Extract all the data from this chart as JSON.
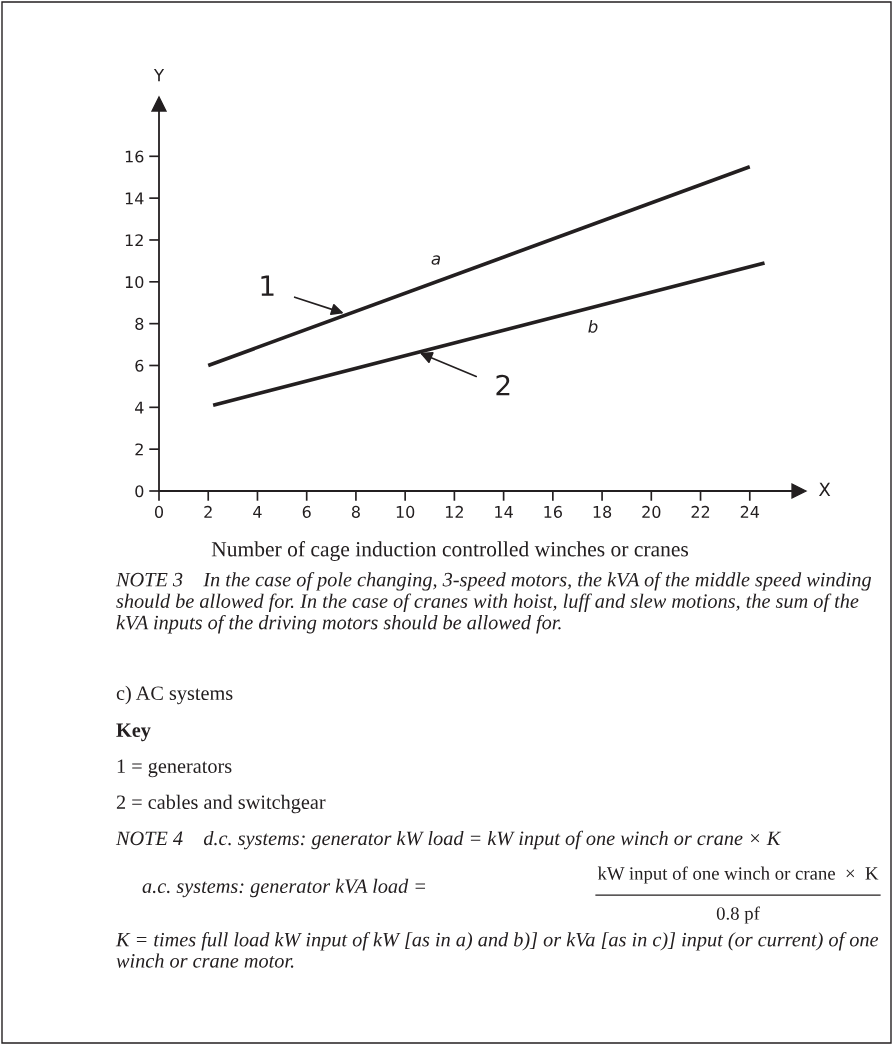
{
  "chart_data": {
    "type": "line",
    "xlabel": "Number of cage induction controlled winches or cranes",
    "ylabel": "Y",
    "xlim": [
      0,
      26
    ],
    "ylim": [
      0,
      18.5
    ],
    "xticks": [
      0,
      2,
      4,
      6,
      8,
      10,
      12,
      14,
      16,
      18,
      20,
      22,
      24
    ],
    "yticks": [
      0,
      2,
      4,
      6,
      8,
      10,
      12,
      14,
      16
    ],
    "grid": false,
    "marker": "none",
    "line_style": "solid",
    "series": [
      {
        "color": "#231f20",
        "x": [
          2,
          24
        ],
        "values": [
          6.0,
          15.5
        ]
      },
      {
        "color": "#231f20",
        "x": [
          2.2,
          24.6
        ],
        "values": [
          4.1,
          10.9
        ]
      }
    ],
    "annotations": [
      "a",
      "b",
      {
        "text": "1",
        "x": 7.5,
        "y": 8.5
      },
      {
        "text": "2",
        "x": 10.6,
        "y": 6.6
      },
      {
        "text": "X",
        "x": 26,
        "y": 0
      },
      "NOTE 3    In the case of pole changing, 3-speed motors, the kVA of the middle speed winding should be allowed for. In the case of cranes with hoist, luff and slew motions, the sum of the kVA inputs of the driving motors should be allowed for.",
      "c) AC systems",
      "Key",
      "1 = generators",
      "2 = cables and switchgear",
      "NOTE 4    d.c. systems: generator kW load = kW input of one winch or crane × K",
      "a.c. systems: generator kVA load =",
      "kW input of one winch or crane  ×  K",
      "0.8 pf",
      "K = times full load kW input of kW [as in a) and b)] or kVa [as in c)] input (or current) of one winch or crane motor."
    ]
  }
}
